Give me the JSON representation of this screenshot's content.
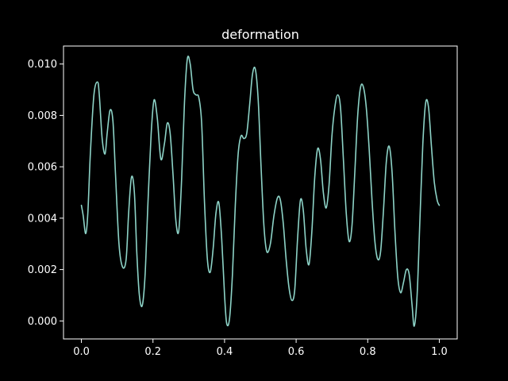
{
  "chart_data": {
    "type": "line",
    "title": "deformation",
    "xlabel": "",
    "ylabel": "",
    "xlim": [
      -0.05,
      1.05
    ],
    "ylim": [
      -0.0007,
      0.0107
    ],
    "x_ticks": [
      0.0,
      0.2,
      0.4,
      0.6,
      0.8,
      1.0
    ],
    "x_tick_labels": [
      "0.0",
      "0.2",
      "0.4",
      "0.6",
      "0.8",
      "1.0"
    ],
    "y_ticks": [
      0.0,
      0.002,
      0.004,
      0.006,
      0.008,
      0.01
    ],
    "y_tick_labels": [
      "0.000",
      "0.002",
      "0.004",
      "0.006",
      "0.008",
      "0.010"
    ],
    "grid": false,
    "colors": {
      "background": "#000000",
      "axes": "#ffffff",
      "text": "#ffffff",
      "line": "#8dd3c7"
    },
    "series": [
      {
        "x": [
          0.0,
          0.005,
          0.012,
          0.018,
          0.025,
          0.035,
          0.045,
          0.05,
          0.058,
          0.066,
          0.072,
          0.08,
          0.088,
          0.095,
          0.105,
          0.115,
          0.125,
          0.132,
          0.14,
          0.148,
          0.155,
          0.162,
          0.17,
          0.178,
          0.186,
          0.195,
          0.203,
          0.212,
          0.222,
          0.232,
          0.24,
          0.248,
          0.256,
          0.264,
          0.272,
          0.28,
          0.288,
          0.296,
          0.304,
          0.312,
          0.32,
          0.328,
          0.336,
          0.344,
          0.352,
          0.36,
          0.368,
          0.376,
          0.384,
          0.392,
          0.4,
          0.406,
          0.414,
          0.422,
          0.43,
          0.438,
          0.446,
          0.454,
          0.462,
          0.47,
          0.478,
          0.486,
          0.494,
          0.502,
          0.51,
          0.518,
          0.528,
          0.538,
          0.548,
          0.556,
          0.564,
          0.572,
          0.58,
          0.588,
          0.596,
          0.604,
          0.612,
          0.62,
          0.628,
          0.636,
          0.644,
          0.652,
          0.66,
          0.668,
          0.676,
          0.684,
          0.692,
          0.7,
          0.708,
          0.716,
          0.724,
          0.732,
          0.74,
          0.748,
          0.756,
          0.764,
          0.772,
          0.78,
          0.788,
          0.796,
          0.804,
          0.812,
          0.82,
          0.828,
          0.836,
          0.844,
          0.852,
          0.86,
          0.868,
          0.876,
          0.884,
          0.892,
          0.9,
          0.908,
          0.916,
          0.924,
          0.93,
          0.938,
          0.946,
          0.954,
          0.962,
          0.97,
          0.978,
          0.986,
          0.994,
          1.0
        ],
        "y": [
          0.0045,
          0.0041,
          0.0034,
          0.0042,
          0.0065,
          0.0088,
          0.0093,
          0.0088,
          0.0071,
          0.0065,
          0.0073,
          0.0082,
          0.0078,
          0.0058,
          0.003,
          0.0021,
          0.0024,
          0.0042,
          0.0056,
          0.005,
          0.0026,
          0.001,
          0.0006,
          0.0018,
          0.0046,
          0.0073,
          0.0086,
          0.0079,
          0.0063,
          0.0069,
          0.0077,
          0.0073,
          0.0057,
          0.0039,
          0.0035,
          0.0055,
          0.0085,
          0.0102,
          0.01,
          0.009,
          0.0088,
          0.0087,
          0.0077,
          0.0046,
          0.0024,
          0.0019,
          0.0028,
          0.0042,
          0.0046,
          0.0032,
          0.001,
          -0.0001,
          0.0001,
          0.0018,
          0.0045,
          0.0065,
          0.0072,
          0.0071,
          0.0073,
          0.0084,
          0.0096,
          0.0098,
          0.0086,
          0.006,
          0.0037,
          0.0027,
          0.003,
          0.0041,
          0.0048,
          0.0047,
          0.0038,
          0.0024,
          0.0013,
          0.0008,
          0.0012,
          0.0032,
          0.0047,
          0.0043,
          0.0028,
          0.0022,
          0.0035,
          0.0056,
          0.0067,
          0.0063,
          0.005,
          0.0044,
          0.0053,
          0.0072,
          0.0083,
          0.0088,
          0.0083,
          0.0063,
          0.0042,
          0.0031,
          0.0037,
          0.0058,
          0.008,
          0.0091,
          0.0091,
          0.0083,
          0.0067,
          0.0047,
          0.0031,
          0.0024,
          0.0027,
          0.0043,
          0.0062,
          0.0068,
          0.0058,
          0.0035,
          0.0017,
          0.0011,
          0.0015,
          0.002,
          0.0018,
          0.0006,
          -0.0002,
          0.001,
          0.004,
          0.0069,
          0.0085,
          0.0083,
          0.0068,
          0.0054,
          0.0047,
          0.0045
        ]
      }
    ]
  }
}
